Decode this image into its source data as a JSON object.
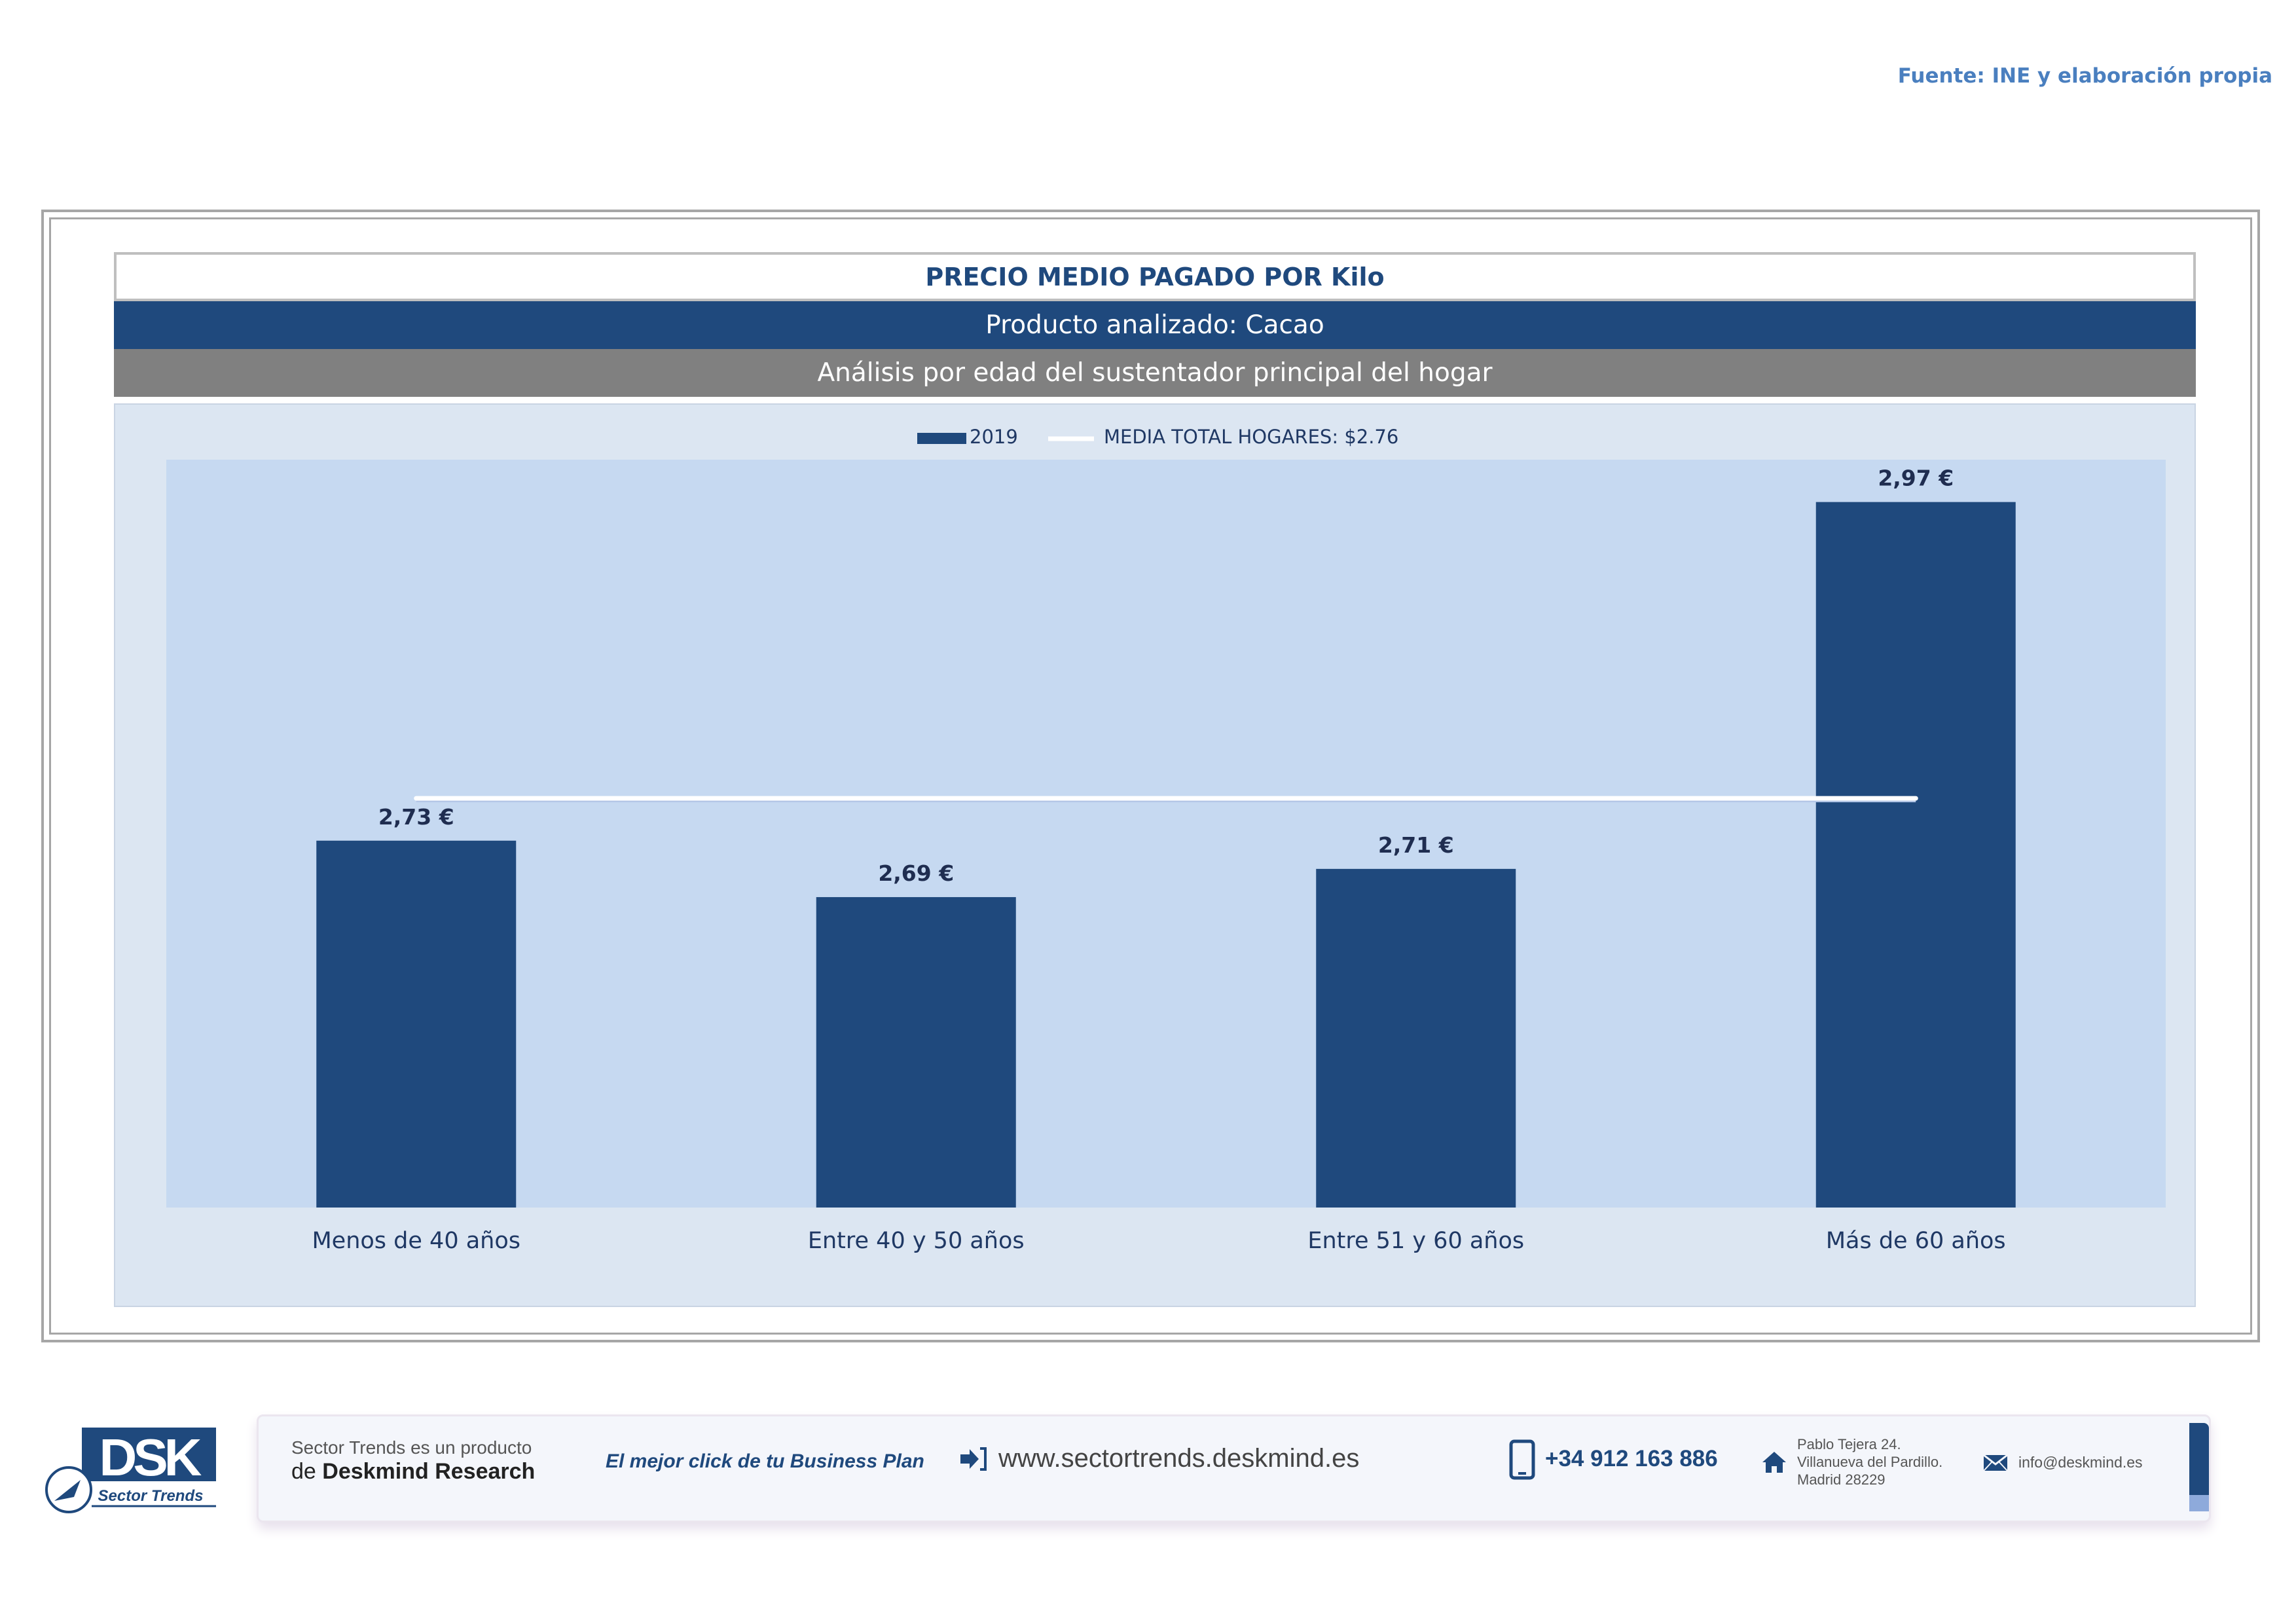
{
  "source": "Fuente: INE y elaboración propia",
  "header": {
    "title": "PRECIO MEDIO PAGADO POR Kilo",
    "subtitle": "Producto analizado: Cacao",
    "analysis": "Análisis por edad del sustentador principal del hogar"
  },
  "chart_data": {
    "type": "bar",
    "categories": [
      "Menos de 40 años",
      "Entre 40 y 50 años",
      "Entre 51  y 60 años",
      "Más de 60 años"
    ],
    "series": [
      {
        "name": "2019",
        "values": [
          2.73,
          2.69,
          2.71,
          2.97
        ],
        "labels": [
          "2,73 €",
          "2,69 €",
          "2,71 €",
          "2,97 €"
        ],
        "color": "#1f497d"
      }
    ],
    "reference_line": {
      "name": "MEDIA TOTAL  HOGARES:   $2.76",
      "value": 2.76,
      "color": "#ffffff"
    },
    "ylim": [
      2.47,
      3.0
    ],
    "legend": "top",
    "grid": false,
    "plot_background": "#c6d9f1"
  },
  "footer": {
    "logo_letters": "DSK",
    "logo_caption": "Sector Trends",
    "product_line": "Sector Trends es un producto",
    "brand_prefix": "de ",
    "brand_name": "Deskmind Research",
    "slogan": "El mejor click de tu Business Plan",
    "website": "www.sectortrends.deskmind.es",
    "phone": "+34 912 163 886",
    "address": [
      "Pablo Tejera 24.",
      "Villanueva del Pardillo.",
      "Madrid 28229"
    ],
    "email": "info@deskmind.es"
  }
}
